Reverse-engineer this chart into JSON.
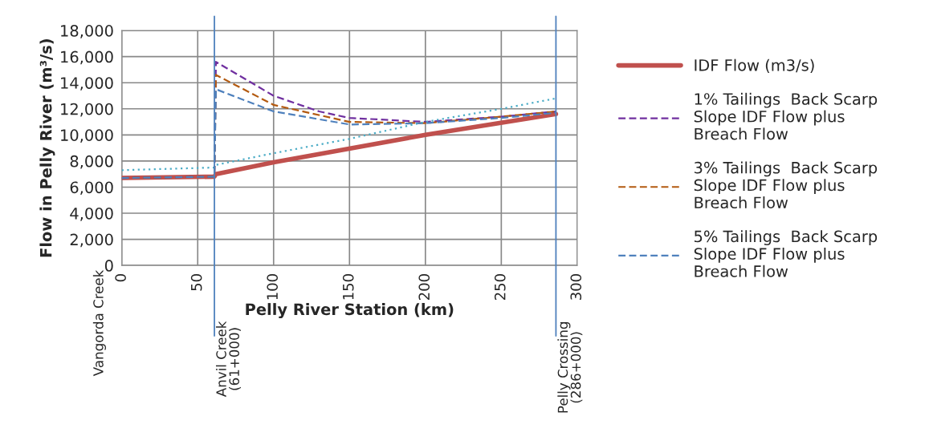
{
  "chart_data": {
    "type": "line",
    "ylabel": "Flow in Pelly River (m³/s)",
    "xlabel": "Pelly River Station (km)",
    "xlim": [
      0,
      300
    ],
    "xticks": [
      0,
      50,
      100,
      150,
      200,
      250,
      300
    ],
    "ylim": [
      0,
      18000
    ],
    "yticks": [
      0,
      {
        "value": 2000,
        "label": "2,000"
      },
      {
        "value": 4000,
        "label": "4,000"
      },
      {
        "value": 6000,
        "label": "6,000"
      },
      {
        "value": 8000,
        "label": "8,000"
      },
      {
        "value": 10000,
        "label": "10,000"
      },
      {
        "value": 12000,
        "label": "12,000"
      },
      {
        "value": 14000,
        "label": "14,000"
      },
      {
        "value": 16000,
        "label": "16,000"
      },
      {
        "value": 18000,
        "label": "18,000"
      }
    ],
    "grid": true,
    "legend": "right",
    "marker": "none",
    "series": [
      {
        "name": "IDF Flow (m3/s)",
        "color": "#c0504d",
        "line_style": "solid",
        "x": [
          0,
          61,
          62,
          100,
          200,
          286
        ],
        "values": [
          6700,
          6800,
          7000,
          7900,
          10000,
          11600
        ]
      },
      {
        "name": "1% Tailings  Back Scarp Slope IDF Flow plus Breach Flow",
        "color": "#7030a0",
        "line_style": "dashed",
        "x": [
          0,
          61,
          62,
          100,
          130,
          150,
          200,
          250,
          286
        ],
        "values": [
          6700,
          6800,
          15600,
          13000,
          11800,
          11300,
          11000,
          11400,
          11800
        ]
      },
      {
        "name": "3% Tailings  Back Scarp Slope IDF Flow plus Breach Flow",
        "color": "#b35a10",
        "line_style": "dashed",
        "x": [
          0,
          61,
          62,
          100,
          150,
          200,
          250,
          286
        ],
        "values": [
          6700,
          6800,
          14600,
          12300,
          11000,
          10900,
          11400,
          11800
        ]
      },
      {
        "name": "5% Tailings  Back Scarp Slope IDF Flow plus Breach Flow",
        "color": "#4f81bd",
        "line_style": "dashed",
        "x": [
          0,
          61,
          62,
          100,
          150,
          200,
          250,
          286
        ],
        "values": [
          6700,
          6800,
          13500,
          11800,
          10800,
          10900,
          11300,
          11700
        ]
      },
      {
        "color": "#4bacc6",
        "line_style": "dotted",
        "x": [
          0,
          61,
          62,
          100,
          150,
          200,
          250,
          286
        ],
        "values": [
          7300,
          7500,
          7700,
          8600,
          9700,
          11000,
          12000,
          12800
        ]
      }
    ],
    "ref_lines": [
      {
        "axis": "x",
        "value": 61,
        "label": "Anvil Creek\n(61+000)",
        "color": "#4f81bd"
      },
      {
        "axis": "x",
        "value": 286,
        "label": "Pelly Crossing\n(286+000)",
        "color": "#4f81bd"
      }
    ],
    "annotations": [
      "Vangorda Creek"
    ]
  }
}
